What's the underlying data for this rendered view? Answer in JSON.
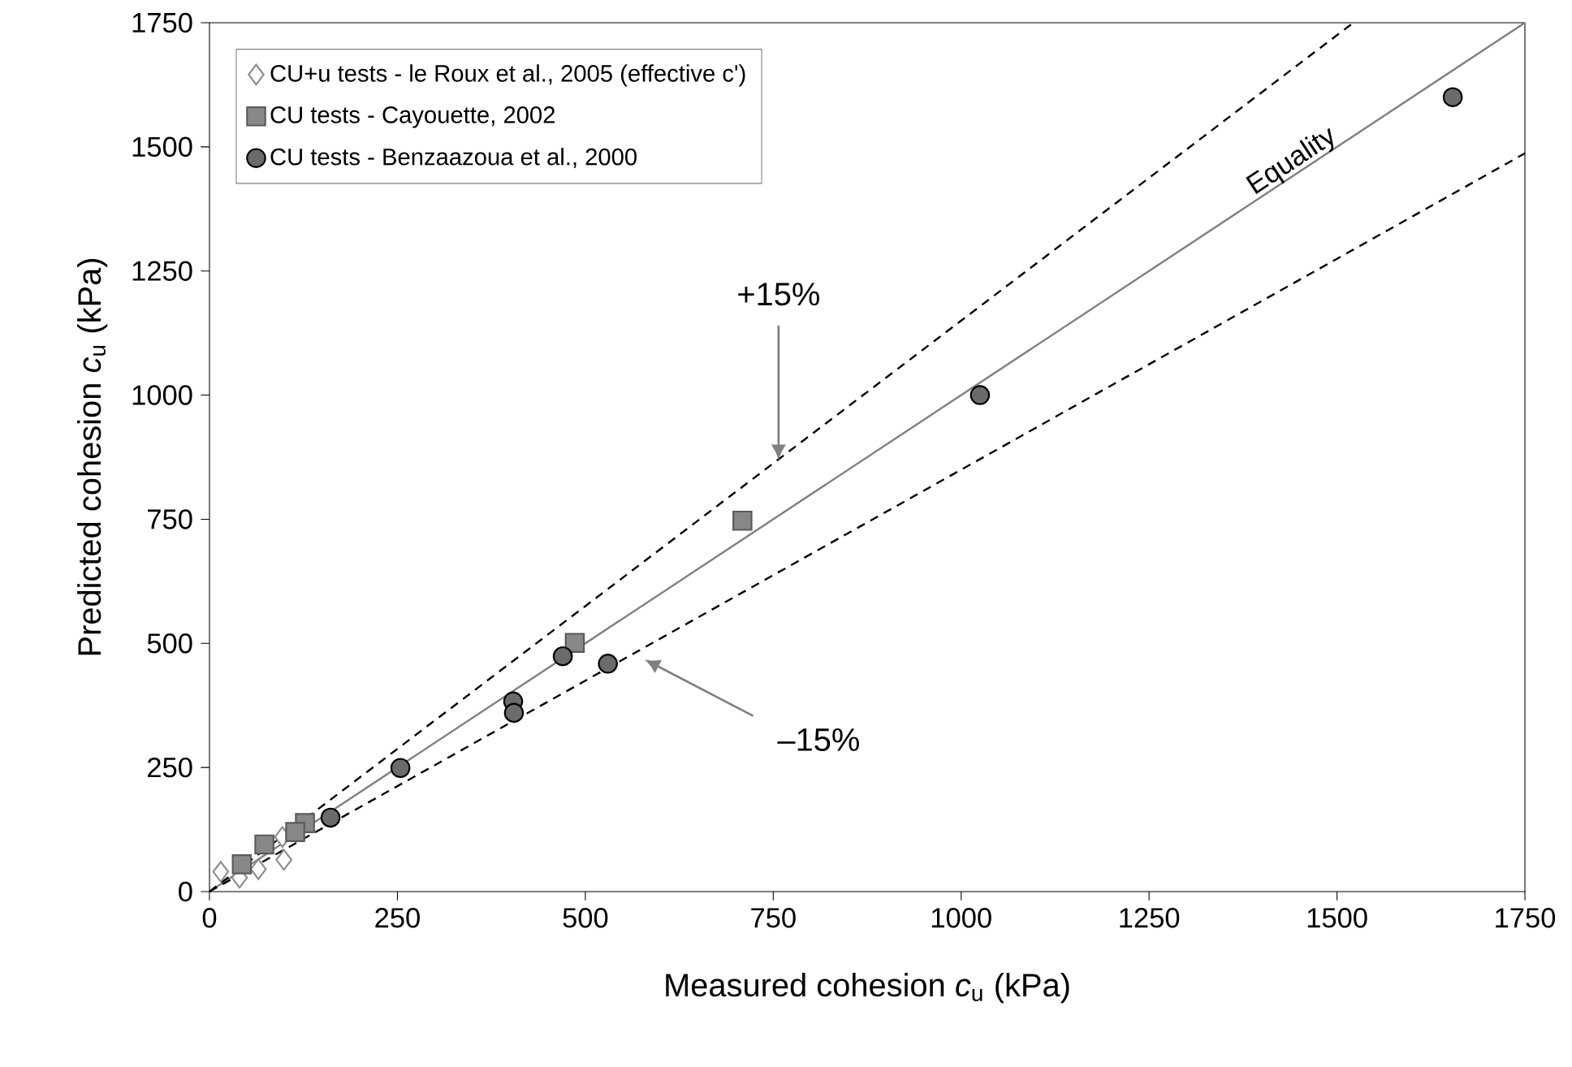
{
  "chart_data": {
    "type": "scatter",
    "xlabel": "Measured cohesion *c*$_{u}$ (kPa)",
    "ylabel": "Predicted cohesion *c*$_{u}$ (kPa)",
    "xlim": [
      0,
      1750
    ],
    "ylim": [
      0,
      1750
    ],
    "xticks": [
      0,
      250,
      500,
      750,
      1000,
      1250,
      1500,
      1750
    ],
    "yticks": [
      0,
      250,
      500,
      750,
      1000,
      1250,
      1500,
      1750
    ],
    "grid": false,
    "legend": "top left",
    "series": [
      {
        "name": "CU+u tests - le Roux et al., 2005 (effective c')",
        "color": "#ffffff",
        "marker": "diamond",
        "x": [
          99,
          97,
          65,
          50,
          40,
          15
        ],
        "values": [
          64,
          110,
          45,
          null,
          28,
          40
        ]
      },
      {
        "name": "CU tests - Cayouette, 2002",
        "color": "#888888",
        "marker": "square",
        "x": [
          709,
          486,
          127,
          114,
          73,
          52,
          43
        ],
        "values": [
          747,
          501,
          138,
          120,
          95,
          null,
          55
        ]
      },
      {
        "name": "CU tests - Benzaazoua et al., 2000",
        "color": "#6b6b6b",
        "marker": "circle",
        "x": [
          1654,
          1025,
          530,
          470,
          404,
          405,
          254,
          161
        ],
        "values": [
          1600,
          1000,
          459,
          474,
          383,
          360,
          249,
          149
        ]
      },
      {
        "type": "line",
        "color": "#808080",
        "line_style": "solid",
        "marker": "none",
        "x": [
          0,
          1750
        ],
        "values": [
          0,
          1750
        ]
      },
      {
        "type": "line",
        "color": "#000000",
        "line_style": "dashed",
        "marker": "none",
        "x": [
          0,
          1520
        ],
        "values": [
          0,
          1748
        ]
      },
      {
        "type": "line",
        "color": "#000000",
        "line_style": "dashed",
        "marker": "none",
        "x": [
          0,
          1750
        ],
        "values": [
          0,
          1487
        ]
      }
    ],
    "annotations": [
      "+15%",
      "–15%",
      "Equality"
    ]
  }
}
